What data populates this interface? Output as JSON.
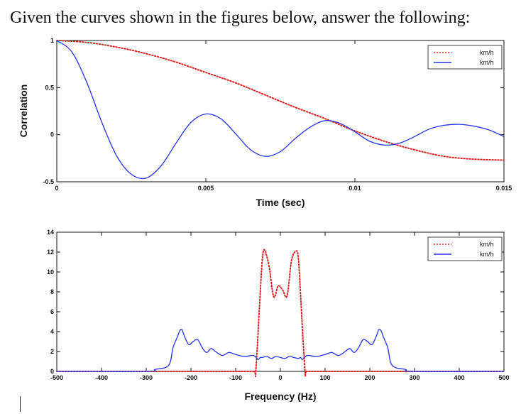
{
  "question": "Given the curves shown in the figures below, answer the following:",
  "chart_data": [
    {
      "type": "line",
      "xlabel": "Time (sec)",
      "ylabel": "Correlation",
      "xlim": [
        0,
        0.015
      ],
      "ylim": [
        -0.5,
        1
      ],
      "xticks": [
        "0",
        "0.005",
        "0.01",
        "0.015"
      ],
      "yticks": [
        "-0.5",
        "0",
        "0.5",
        "1"
      ],
      "legend_position": "top-right",
      "series": [
        {
          "name": "km/h",
          "style": "dotted",
          "color": "#e02020",
          "x": [
            0,
            0.001,
            0.002,
            0.003,
            0.004,
            0.005,
            0.006,
            0.007,
            0.008,
            0.009,
            0.01,
            0.011,
            0.012,
            0.013,
            0.014,
            0.015
          ],
          "y": [
            1,
            0.98,
            0.93,
            0.86,
            0.77,
            0.66,
            0.55,
            0.42,
            0.29,
            0.17,
            0.04,
            -0.07,
            -0.16,
            -0.23,
            -0.26,
            -0.27
          ]
        },
        {
          "name": "km/h",
          "style": "solid",
          "color": "#2233ee",
          "x": [
            0,
            0.0005,
            0.001,
            0.0015,
            0.002,
            0.0025,
            0.003,
            0.0035,
            0.004,
            0.0045,
            0.005,
            0.0055,
            0.006,
            0.0065,
            0.007,
            0.0075,
            0.008,
            0.0085,
            0.009,
            0.0095,
            0.01,
            0.0105,
            0.011,
            0.0115,
            0.012,
            0.0125,
            0.013,
            0.0135,
            0.014,
            0.0145,
            0.015
          ],
          "y": [
            1,
            0.88,
            0.56,
            0.14,
            -0.22,
            -0.42,
            -0.46,
            -0.33,
            -0.09,
            0.13,
            0.22,
            0.17,
            0.01,
            -0.16,
            -0.23,
            -0.18,
            -0.04,
            0.08,
            0.15,
            0.12,
            0.03,
            -0.07,
            -0.11,
            -0.09,
            -0.02,
            0.06,
            0.1,
            0.11,
            0.09,
            0.05,
            -0.02
          ]
        }
      ]
    },
    {
      "type": "line",
      "xlabel": "Frequency (Hz)",
      "ylabel": "",
      "xlim": [
        -500,
        500
      ],
      "ylim": [
        0,
        14
      ],
      "xticks": [
        "-500",
        "-400",
        "-300",
        "-200",
        "-100",
        "0",
        "100",
        "200",
        "300",
        "400",
        "500"
      ],
      "yticks": [
        "0",
        "2",
        "4",
        "6",
        "8",
        "10",
        "12",
        "14"
      ],
      "legend_position": "top-right",
      "series": [
        {
          "name": "km/h",
          "style": "dotted",
          "color": "#e02020",
          "x": [
            -500,
            -100,
            -60,
            -55,
            -45,
            -40,
            -35,
            -25,
            -15,
            -5,
            5,
            15,
            25,
            35,
            40,
            45,
            55,
            60,
            100,
            500
          ],
          "y": [
            0,
            0,
            0,
            0.1,
            8,
            11.5,
            12.2,
            10.5,
            7.5,
            8.6,
            8.2,
            7.6,
            11.2,
            12.1,
            11.5,
            7.8,
            0.1,
            0,
            0,
            0
          ]
        },
        {
          "name": "km/h",
          "style": "solid",
          "color": "#2233ee",
          "x": [
            -500,
            -300,
            -280,
            -250,
            -240,
            -230,
            -225,
            -220,
            -215,
            -205,
            -195,
            -185,
            -175,
            -165,
            -155,
            -145,
            -130,
            -115,
            -100,
            -80,
            -60,
            -50,
            -45,
            -40,
            -30,
            -20,
            -10,
            0,
            10,
            20,
            30,
            40,
            45,
            50,
            60,
            80,
            100,
            115,
            130,
            145,
            155,
            165,
            175,
            185,
            195,
            205,
            215,
            220,
            225,
            230,
            240,
            250,
            280,
            300,
            500
          ],
          "y": [
            0,
            0,
            0.2,
            0.6,
            2.4,
            3.5,
            4.1,
            4.2,
            3.6,
            2.7,
            3.0,
            3.2,
            2.4,
            1.9,
            2.3,
            2.0,
            1.6,
            1.9,
            1.7,
            1.5,
            1.6,
            1.2,
            1.4,
            1.4,
            1.5,
            1.3,
            1.5,
            1.4,
            1.3,
            1.5,
            1.4,
            1.3,
            1.4,
            1.2,
            1.6,
            1.5,
            1.7,
            1.9,
            1.6,
            2.0,
            2.3,
            1.9,
            2.4,
            3.2,
            3.0,
            2.7,
            3.6,
            4.2,
            4.1,
            3.5,
            2.4,
            0.6,
            0.2,
            0,
            0
          ]
        }
      ]
    }
  ]
}
